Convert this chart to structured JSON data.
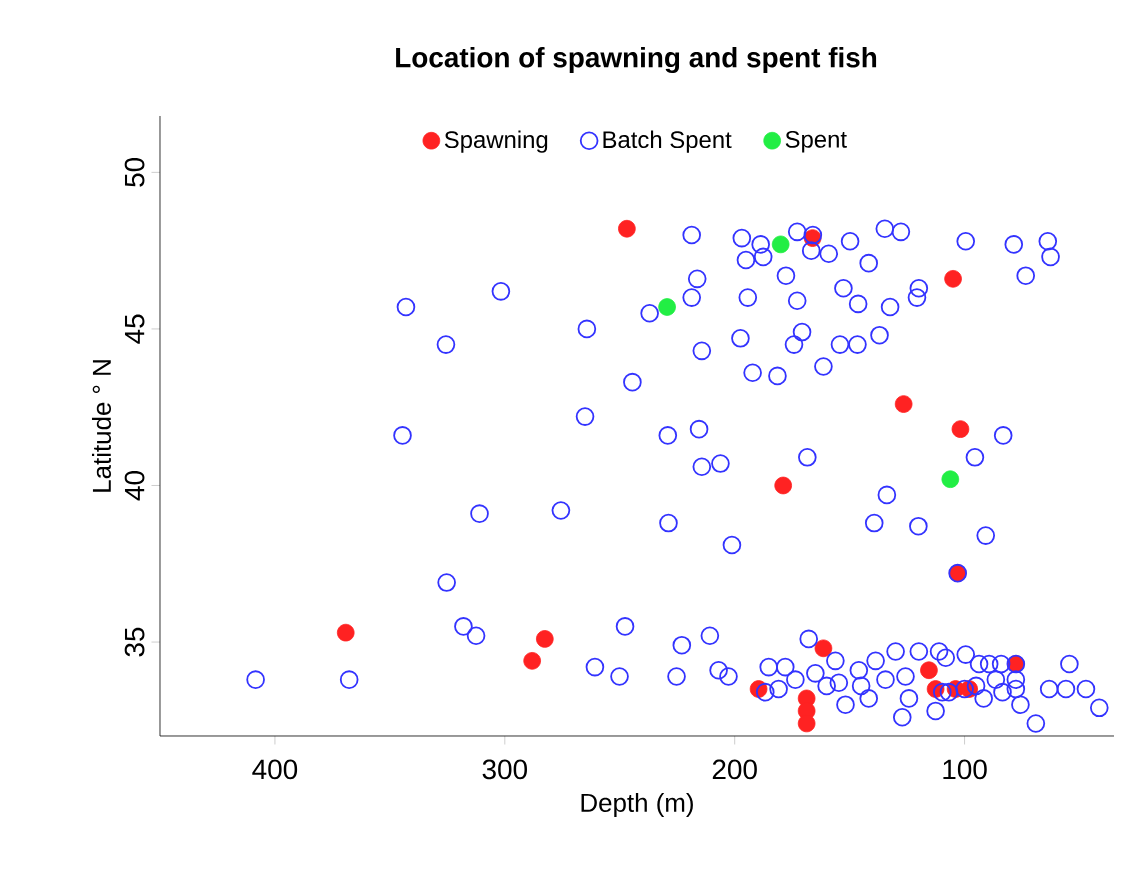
{
  "chart_data": {
    "type": "scatter",
    "title": "Location of spawning and spent fish",
    "xlabel": "Depth (m)",
    "ylabel": "Latitude ° N",
    "xlim": [
      450,
      35
    ],
    "ylim": [
      32,
      51.8
    ],
    "xticks": [
      100,
      200,
      300,
      400
    ],
    "yticks": [
      35,
      40,
      45,
      50
    ],
    "legend": "top",
    "marker": "circle",
    "grid": false,
    "series": [
      {
        "name": "Spawning",
        "color": "#ff2222",
        "x": [
          246.9,
          166.1,
          105.0,
          126.5,
          101.8,
          178.9,
          103.0,
          369.2,
          282.6,
          288.1,
          189.6,
          168.7,
          168.7,
          168.7,
          161.4,
          115.5,
          112.6,
          103.9,
          98.0,
          77.7
        ],
        "values": [
          48.2,
          47.9,
          46.6,
          42.6,
          41.8,
          40.0,
          37.2,
          35.3,
          35.1,
          34.4,
          33.5,
          33.2,
          32.8,
          32.4,
          34.8,
          34.1,
          33.5,
          33.5,
          33.5,
          34.3
        ]
      },
      {
        "name": "Batch Spent",
        "color": "#3333ff",
        "x": [
          218.7,
          196.9,
          188.7,
          172.8,
          195.1,
          187.6,
          166.7,
          159.1,
          149.8,
          134.7,
          127.7,
          141.7,
          99.5,
          78.6,
          63.8,
          62.6,
          73.4,
          177.7,
          216.3,
          218.7,
          237.0,
          194.3,
          172.8,
          152.7,
          146.3,
          132.4,
          120.7,
          119.9,
          197.5,
          214.3,
          170.7,
          174.2,
          154.2,
          146.6,
          137.0,
          192.2,
          181.4,
          161.4,
          244.5,
          229.1,
          215.5,
          214.3,
          206.2,
          168.4,
          133.8,
          83.2,
          95.5,
          166.0,
          343.0,
          301.7,
          325.6,
          264.3,
          344.5,
          265.1,
          311.0,
          275.6,
          228.8,
          201.2,
          139.3,
          120.1,
          90.8,
          103.0,
          325.3,
          318.0,
          312.5,
          260.8,
          250.1,
          408.4,
          367.7,
          247.7,
          223.0,
          210.8,
          225.3,
          207.0,
          202.7,
          185.2,
          167.8,
          180.9,
          173.6,
          164.9,
          156.2,
          154.7,
          151.8,
          141.7,
          146.0,
          138.7,
          134.4,
          130.0,
          125.7,
          124.2,
          127.1,
          119.9,
          112.6,
          111.1,
          108.2,
          99.5,
          109.7,
          106.8,
          93.7,
          89.3,
          84.1,
          91.7,
          83.5,
          77.7,
          75.7,
          69.0,
          63.2,
          54.4,
          55.9,
          47.2,
          41.4,
          86.4,
          77.7,
          186.7,
          178.0,
          160.0,
          145.0,
          100.0,
          95.0,
          77.7
        ],
        "values": [
          48.0,
          47.9,
          47.7,
          48.1,
          47.2,
          47.3,
          47.5,
          47.4,
          47.8,
          48.2,
          48.1,
          47.1,
          47.8,
          47.7,
          47.8,
          47.3,
          46.7,
          46.7,
          46.6,
          46.0,
          45.5,
          46.0,
          45.9,
          46.3,
          45.8,
          45.7,
          46.0,
          46.3,
          44.7,
          44.3,
          44.9,
          44.5,
          44.5,
          44.5,
          44.8,
          43.6,
          43.5,
          43.8,
          43.3,
          41.6,
          41.8,
          40.6,
          40.7,
          40.9,
          39.7,
          41.6,
          40.9,
          48.0,
          45.7,
          46.2,
          44.5,
          45.0,
          41.6,
          42.2,
          39.1,
          39.2,
          38.8,
          38.1,
          38.8,
          38.7,
          38.4,
          37.2,
          36.9,
          35.5,
          35.2,
          34.2,
          33.9,
          33.8,
          33.8,
          35.5,
          34.9,
          35.2,
          33.9,
          34.1,
          33.9,
          34.2,
          35.1,
          33.5,
          33.8,
          34.0,
          34.4,
          33.7,
          33.0,
          33.2,
          34.1,
          34.4,
          33.8,
          34.7,
          33.9,
          33.2,
          32.6,
          34.7,
          32.8,
          34.7,
          34.5,
          34.6,
          33.4,
          33.4,
          34.3,
          34.3,
          34.3,
          33.2,
          33.4,
          33.5,
          33.0,
          32.4,
          33.5,
          34.3,
          33.5,
          33.5,
          32.9,
          33.8,
          33.8,
          33.4,
          34.2,
          33.6,
          33.6,
          33.5,
          33.6,
          34.3
        ]
      },
      {
        "name": "Spent",
        "color": "#22ee44",
        "x": [
          180.0,
          229.4,
          106.2
        ],
        "values": [
          47.7,
          45.7,
          40.2
        ]
      }
    ]
  }
}
